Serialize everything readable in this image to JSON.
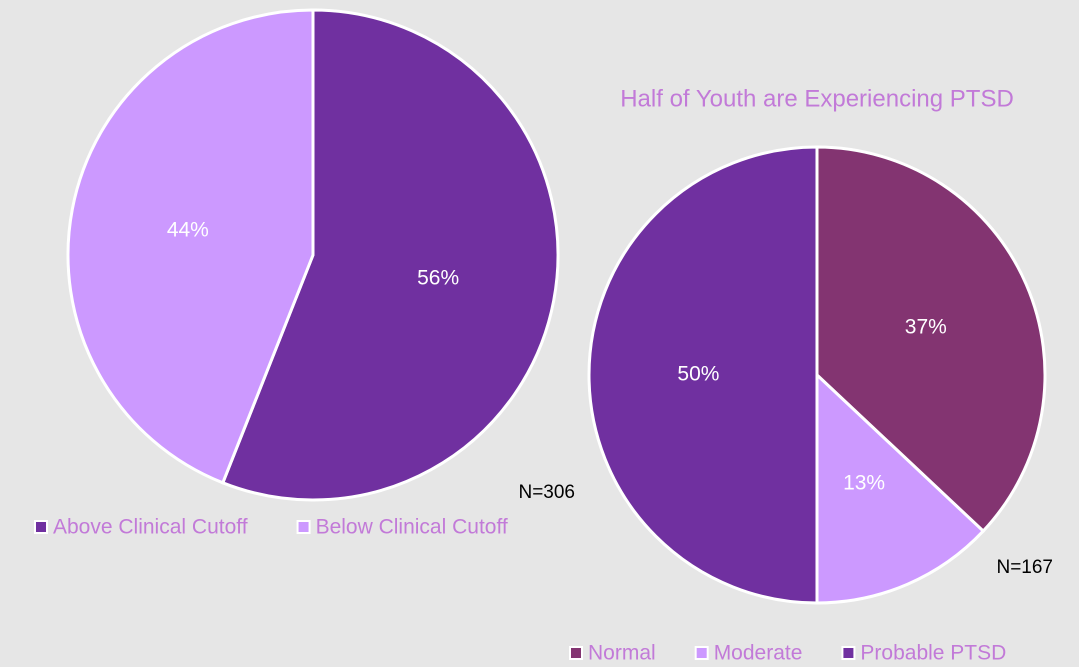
{
  "chart_data": [
    {
      "type": "pie",
      "categories": [
        "Above Clinical Cutoff",
        "Below Clinical Cutoff"
      ],
      "values": [
        56,
        44
      ],
      "value_labels": [
        "56%",
        "44%"
      ],
      "colors": [
        "#7030a0",
        "#cc99ff"
      ],
      "annotation": "N=306",
      "legend": "bottom"
    },
    {
      "type": "pie",
      "title": "Half of Youth are Experiencing PTSD",
      "categories": [
        "Normal",
        "Moderate",
        "Probable PTSD"
      ],
      "values": [
        37,
        13,
        50
      ],
      "value_labels": [
        "37%",
        "13%",
        "50%"
      ],
      "colors": [
        "#833471",
        "#cc99ff",
        "#7030a0"
      ],
      "annotation": "N=167",
      "legend": "bottom"
    }
  ]
}
